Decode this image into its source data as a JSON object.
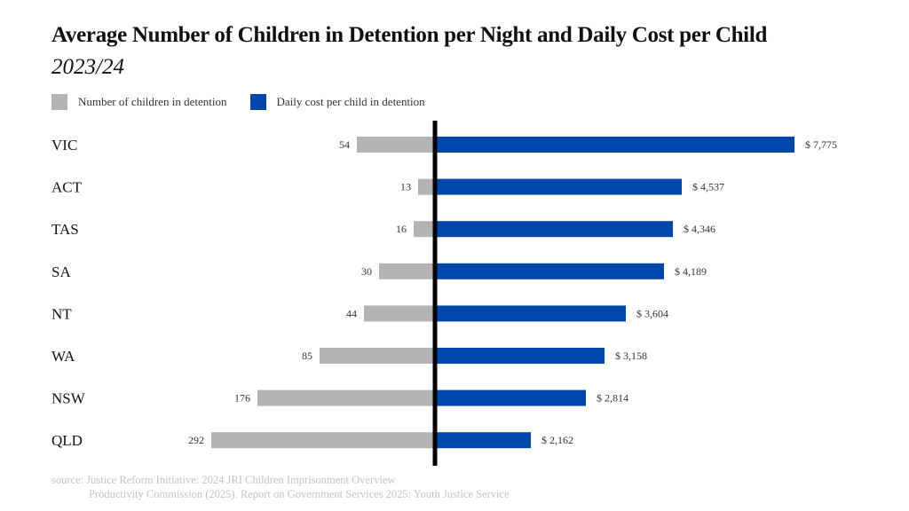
{
  "chart_data": {
    "type": "bar",
    "orientation": "horizontal-diverging",
    "title": "Average Number of Children in Detention per Night and Daily Cost per Child",
    "subtitle": "2023/24",
    "categories": [
      "VIC",
      "ACT",
      "TAS",
      "SA",
      "NT",
      "WA",
      "NSW",
      "QLD"
    ],
    "series": [
      {
        "name": "Number of children in detention",
        "color": "#b3b3b3",
        "side": "left",
        "values": [
          54,
          13,
          16,
          30,
          44,
          85,
          176,
          292
        ],
        "labels": [
          "54",
          "13",
          "16",
          "30",
          "44",
          "85",
          "176",
          "292"
        ]
      },
      {
        "name": "Daily cost per child in detention",
        "color": "#0047ab",
        "side": "right",
        "values": [
          7775,
          4537,
          4346,
          4189,
          3604,
          3158,
          2814,
          2162
        ],
        "labels": [
          "$ 7,775",
          "$ 4,537",
          "$ 4,346",
          "$ 4,189",
          "$ 3,604",
          "$ 3,158",
          "$ 2,814",
          "$ 2,162"
        ]
      }
    ],
    "legend_position": "top-left",
    "grid": false,
    "axis_color": "#000000"
  },
  "source": {
    "line1": "source: Justice Reform Initiative: 2024 JRI Children Imprisonment Overview",
    "line2": "Productivity Commission (2025). Report on Government Services 2025: Youth Justice Service"
  }
}
